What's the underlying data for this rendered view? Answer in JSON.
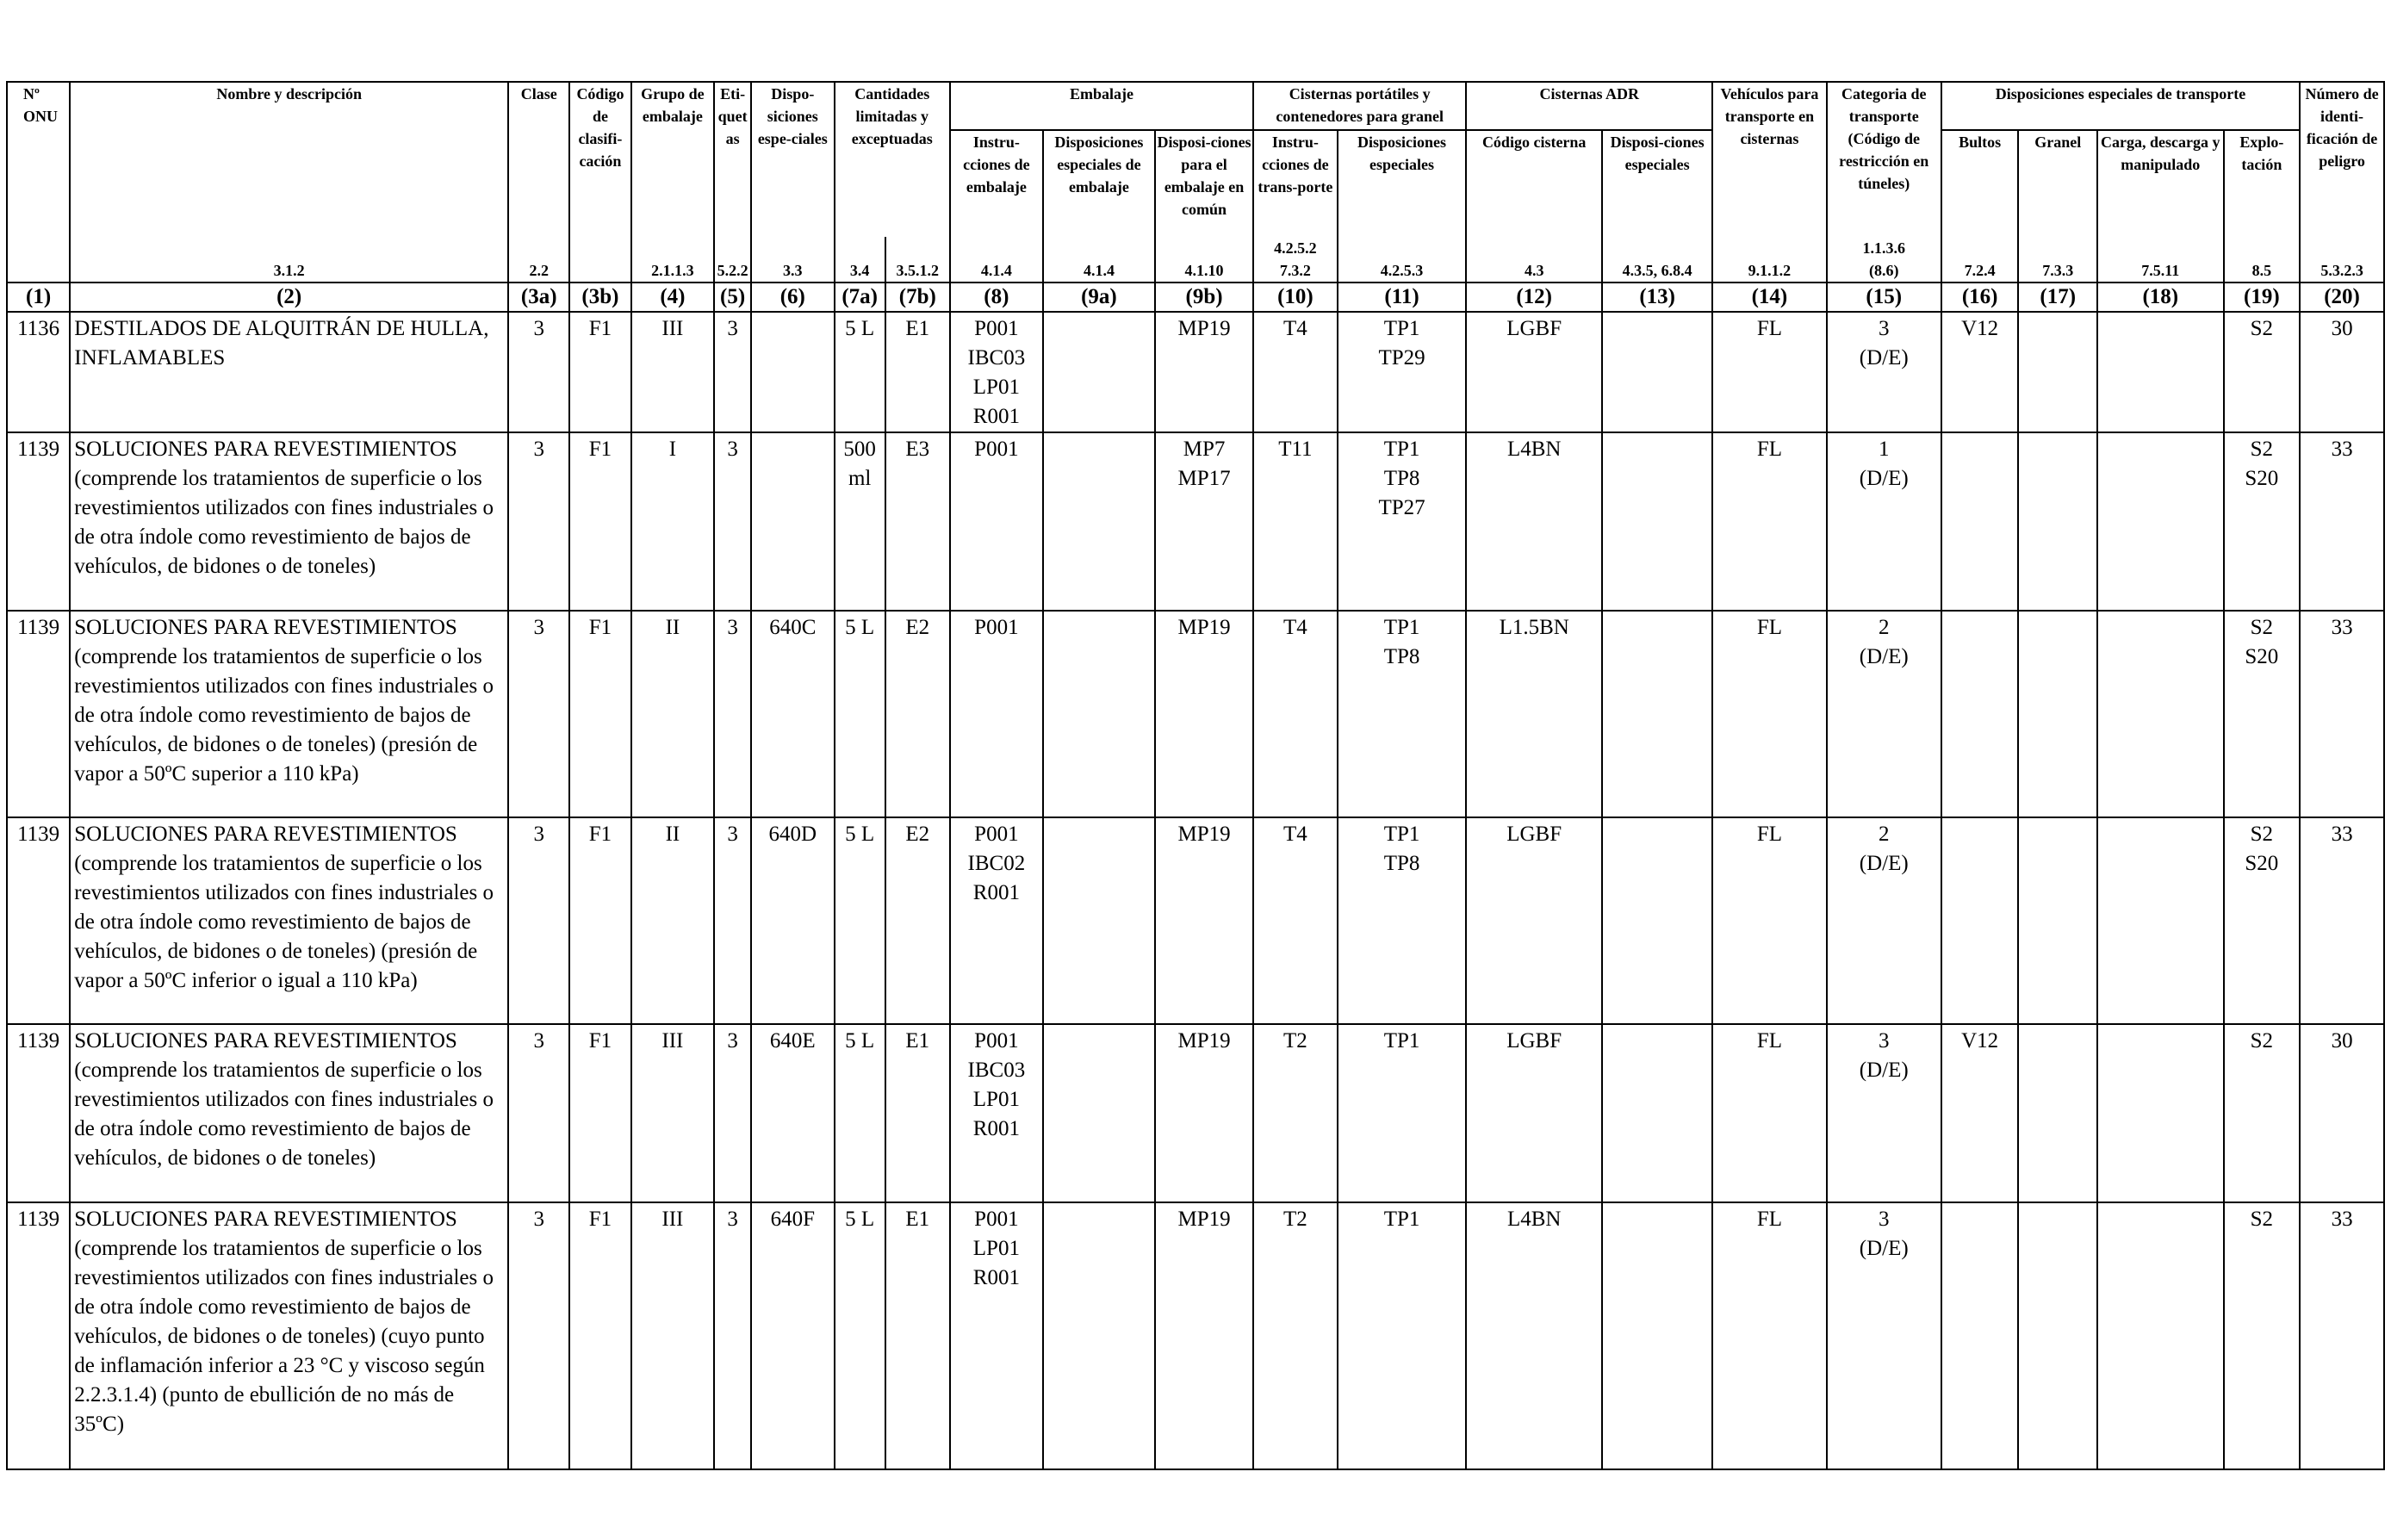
{
  "headers": {
    "onu": "Nº ONU",
    "name": "Nombre y descripción",
    "clase": "Clase",
    "codigo": "Código de clasifi-cación",
    "grupo": "Grupo de embalaje",
    "etiquetas": "Eti-quetas",
    "disposiciones": "Dispo-siciones espe-ciales",
    "cantidades": "Cantidades limitadas y exceptuadas",
    "embalaje": "Embalaje",
    "embalaje_instr": "Instru-cciones de embalaje",
    "embalaje_disp": "Disposiciones especiales de embalaje",
    "embalaje_comun": "Disposi-ciones para el embalaje en común",
    "cisternas_portatiles": "Cisternas portátiles y contenedores para granel",
    "cp_instr": "Instru-cciones de trans-porte",
    "cp_disp": "Disposiciones especiales",
    "cisternas_adr": "Cisternas ADR",
    "adr_codigo": "Código cisterna",
    "adr_disp": "Disposi-ciones especiales",
    "vehiculos": "Vehículos para transporte en cisternas",
    "categoria": "Categoria de transporte (Código de restricción en túneles)",
    "dis_transporte": "Disposiciones especiales de transporte",
    "bultos": "Bultos",
    "granel": "Granel",
    "carga": "Carga, descarga y manipulado",
    "explotacion": "Explo-tación",
    "numero_peligro": "Número de identi-ficación de peligro"
  },
  "refs": {
    "r2": "3.1.2",
    "r3a": "2.2",
    "r4": "2.1.1.3",
    "r5": "5.2.2",
    "r6": "3.3",
    "r7a": "3.4",
    "r7b": "3.5.1.2",
    "r8": "4.1.4",
    "r9a": "4.1.4",
    "r9b": "4.1.10",
    "r10a": "4.2.5.2",
    "r10b": "7.3.2",
    "r11": "4.2.5.3",
    "r12": "4.3",
    "r13": "4.3.5, 6.8.4",
    "r14": "9.1.1.2",
    "r15a": "1.1.3.6",
    "r15b": "(8.6)",
    "r16": "7.2.4",
    "r17": "7.3.3",
    "r18": "7.5.11",
    "r19": "8.5",
    "r20": "5.3.2.3"
  },
  "col_numbers": [
    "(1)",
    "(2)",
    "(3a)",
    "(3b)",
    "(4)",
    "(5)",
    "(6)",
    "(7a)",
    "(7b)",
    "(8)",
    "(9a)",
    "(9b)",
    "(10)",
    "(11)",
    "(12)",
    "(13)",
    "(14)",
    "(15)",
    "(16)",
    "(17)",
    "(18)",
    "(19)",
    "(20)"
  ],
  "rows": [
    {
      "onu": "1136",
      "name": "DESTILADOS DE ALQUITRÁN DE HULLA, INFLAMABLES",
      "clase": "3",
      "codigo": "F1",
      "grupo": "III",
      "etiquetas": "3",
      "disp": "",
      "c7a": "5 L",
      "c7b": "E1",
      "instr": [
        "P001",
        "IBC03",
        "LP01",
        "R001"
      ],
      "c9a": "",
      "c9b": [
        "MP19"
      ],
      "c10": "T4",
      "c11": [
        "TP1",
        "TP29"
      ],
      "c12": "LGBF",
      "c13": "",
      "c14": "FL",
      "c15": [
        "3",
        "(D/E)"
      ],
      "c16": "V12",
      "c17": "",
      "c18": "",
      "c19": [
        "S2"
      ],
      "c20": "30"
    },
    {
      "onu": "1139",
      "name": "SOLUCIONES PARA REVESTIMIENTOS (comprende los tratamientos de superficie o los revestimientos utilizados con fines industriales o de otra índole como revestimiento de bajos de vehículos, de bidones o de toneles)",
      "clase": "3",
      "codigo": "F1",
      "grupo": "I",
      "etiquetas": "3",
      "disp": "",
      "c7a": "500 ml",
      "c7b": "E3",
      "instr": [
        "P001"
      ],
      "c9a": "",
      "c9b": [
        "MP7",
        "MP17"
      ],
      "c10": "T11",
      "c11": [
        "TP1",
        "TP8",
        "TP27"
      ],
      "c12": "L4BN",
      "c13": "",
      "c14": "FL",
      "c15": [
        "1",
        "(D/E)"
      ],
      "c16": "",
      "c17": "",
      "c18": "",
      "c19": [
        "S2",
        "S20"
      ],
      "c20": "33"
    },
    {
      "onu": "1139",
      "name": "SOLUCIONES PARA REVESTIMIENTOS (comprende los tratamientos de superficie o los revestimientos utilizados con fines industriales o de otra índole como revestimiento de bajos de vehículos, de bidones o de toneles) (presión de vapor a 50ºC superior a 110 kPa)",
      "clase": "3",
      "codigo": "F1",
      "grupo": "II",
      "etiquetas": "3",
      "disp": "640C",
      "c7a": "5 L",
      "c7b": "E2",
      "instr": [
        "P001"
      ],
      "c9a": "",
      "c9b": [
        "MP19"
      ],
      "c10": "T4",
      "c11": [
        "TP1",
        "TP8"
      ],
      "c12": "L1.5BN",
      "c13": "",
      "c14": "FL",
      "c15": [
        "2",
        "(D/E)"
      ],
      "c16": "",
      "c17": "",
      "c18": "",
      "c19": [
        "S2",
        "S20"
      ],
      "c20": "33"
    },
    {
      "onu": "1139",
      "name": "SOLUCIONES PARA REVESTIMIENTOS (comprende los tratamientos de superficie o los revestimientos utilizados con fines industriales o de otra índole como revestimiento de bajos de vehículos, de bidones o de toneles) (presión de vapor a 50ºC inferior o igual a 110 kPa)",
      "clase": "3",
      "codigo": "F1",
      "grupo": "II",
      "etiquetas": "3",
      "disp": "640D",
      "c7a": "5 L",
      "c7b": "E2",
      "instr": [
        "P001",
        "IBC02",
        "R001"
      ],
      "c9a": "",
      "c9b": [
        "MP19"
      ],
      "c10": "T4",
      "c11": [
        "TP1",
        "TP8"
      ],
      "c12": "LGBF",
      "c13": "",
      "c14": "FL",
      "c15": [
        "2",
        "(D/E)"
      ],
      "c16": "",
      "c17": "",
      "c18": "",
      "c19": [
        "S2",
        "S20"
      ],
      "c20": "33"
    },
    {
      "onu": "1139",
      "name": "SOLUCIONES PARA REVESTIMIENTOS (comprende los tratamientos de superficie o los revestimientos utilizados con fines industriales o de otra índole como revestimiento de bajos de vehículos, de bidones o de toneles)",
      "clase": "3",
      "codigo": "F1",
      "grupo": "III",
      "etiquetas": "3",
      "disp": "640E",
      "c7a": "5 L",
      "c7b": "E1",
      "instr": [
        "P001",
        "IBC03",
        "LP01",
        "R001"
      ],
      "c9a": "",
      "c9b": [
        "MP19"
      ],
      "c10": "T2",
      "c11": [
        "TP1"
      ],
      "c12": "LGBF",
      "c13": "",
      "c14": "FL",
      "c15": [
        "3",
        "(D/E)"
      ],
      "c16": "V12",
      "c17": "",
      "c18": "",
      "c19": [
        "S2"
      ],
      "c20": "30"
    },
    {
      "onu": "1139",
      "name": "SOLUCIONES PARA REVESTIMIENTOS (comprende los tratamientos de superficie o los revestimientos utilizados con fines industriales o de otra índole como revestimiento de bajos de vehículos, de bidones o de toneles) (cuyo punto de inflamación inferior a 23 °C y viscoso según 2.2.3.1.4) (punto de ebullición de no más de 35ºC)",
      "clase": "3",
      "codigo": "F1",
      "grupo": "III",
      "etiquetas": "3",
      "disp": "640F",
      "c7a": "5 L",
      "c7b": "E1",
      "instr": [
        "P001",
        "LP01",
        "R001"
      ],
      "c9a": "",
      "c9b": [
        "MP19"
      ],
      "c10": "T2",
      "c11": [
        "TP1"
      ],
      "c12": "L4BN",
      "c13": "",
      "c14": "FL",
      "c15": [
        "3",
        "(D/E)"
      ],
      "c16": "",
      "c17": "",
      "c18": "",
      "c19": [
        "S2"
      ],
      "c20": "33"
    }
  ]
}
